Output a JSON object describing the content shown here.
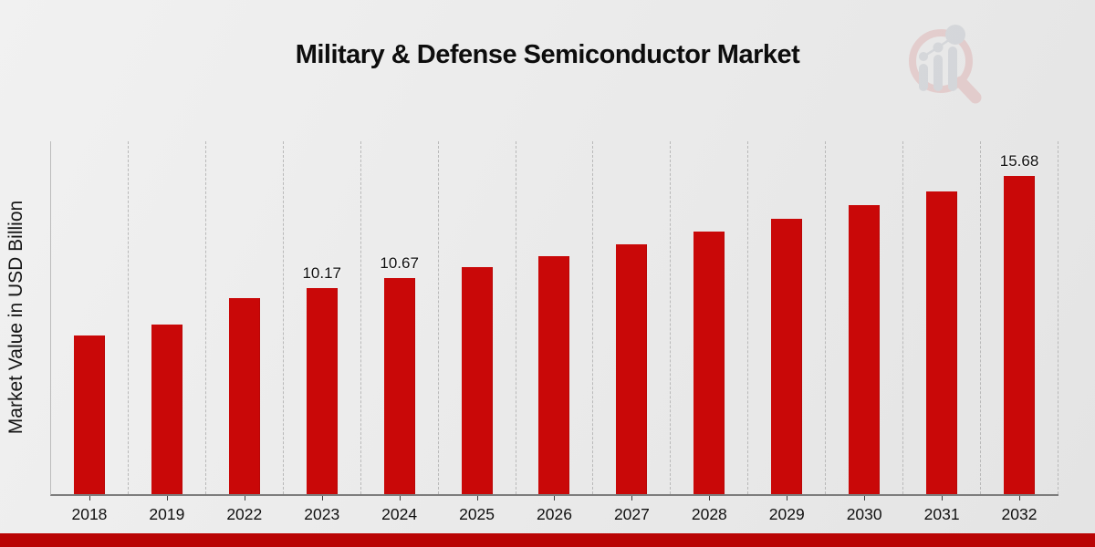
{
  "page": {
    "title": "Military & Defense Semiconductor Market"
  },
  "chart_data": {
    "type": "bar",
    "title": "Military & Defense Semiconductor Market",
    "xlabel": "",
    "ylabel": "Market Value in USD Billion",
    "categories": [
      "2018",
      "2019",
      "2022",
      "2023",
      "2024",
      "2025",
      "2026",
      "2027",
      "2028",
      "2029",
      "2030",
      "2031",
      "2032"
    ],
    "values": [
      7.85,
      8.38,
      9.68,
      10.17,
      10.67,
      11.2,
      11.75,
      12.33,
      12.94,
      13.57,
      14.24,
      14.94,
      15.68
    ],
    "value_labels": [
      "",
      "",
      "",
      "10.17",
      "10.67",
      "",
      "",
      "",
      "",
      "",
      "",
      "",
      "15.68"
    ],
    "ylim": [
      0,
      17.5
    ],
    "grid": "vertical-dashed",
    "legend": "none",
    "bar_color": "#c90808"
  },
  "branding": {
    "logo_icon": "magnifier-bar-chart-watermark",
    "accent_red": "#b90404",
    "logo_ring_color": "#dfb3b3",
    "logo_bar_color": "#c3c7cd"
  }
}
